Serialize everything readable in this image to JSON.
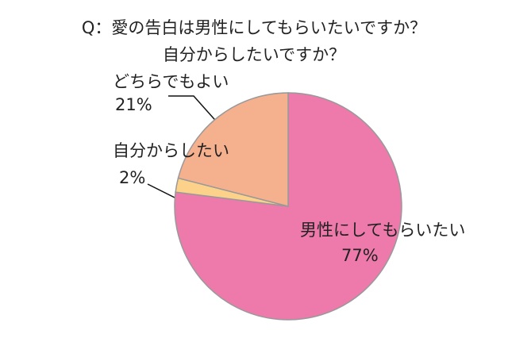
{
  "chart_data": {
    "type": "pie",
    "title": [
      "Q：愛の告白は男性にしてもらいたいですか？",
      "自分からしたいですか？"
    ],
    "categories": [
      "男性にしてもらいたい",
      "自分からしたい",
      "どちらでもよい"
    ],
    "values": [
      77,
      2,
      21
    ],
    "value_labels": [
      "77%",
      "2%",
      "21%"
    ],
    "colors": [
      "#ee7aac",
      "#fcd28a",
      "#f5b08e"
    ]
  }
}
